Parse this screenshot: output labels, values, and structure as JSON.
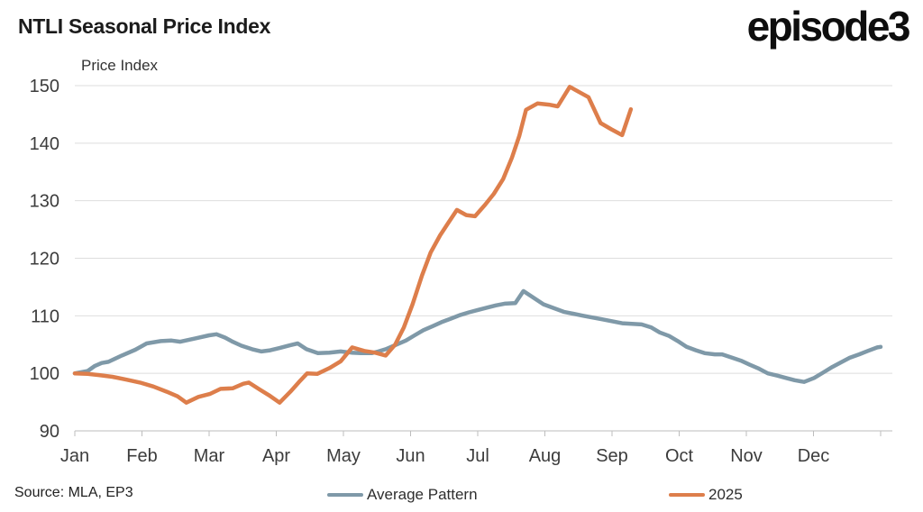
{
  "header": {
    "title": "NTLI Seasonal Price Index",
    "logo_text": "episode3"
  },
  "footer": {
    "source": "Source: MLA, EP3"
  },
  "chart_data": {
    "type": "line",
    "title": "NTLI Seasonal Price Index",
    "ylabel": "Price Index",
    "xlabel": "",
    "grid": true,
    "legend_position": "bottom",
    "ylim": [
      90,
      150
    ],
    "y_ticks": [
      90,
      100,
      110,
      120,
      130,
      140,
      150
    ],
    "x_unit": "month_index_0_is_january",
    "x_tick_labels": [
      "Jan",
      "Feb",
      "Mar",
      "Apr",
      "May",
      "Jun",
      "Jul",
      "Aug",
      "Sep",
      "Oct",
      "Nov",
      "Dec"
    ],
    "colors": {
      "average_pattern": "#7f99a8",
      "year_2025": "#dd7e4b"
    },
    "series": [
      {
        "name": "Average Pattern",
        "color": "#7f99a8",
        "points": [
          [
            0.0,
            100.0
          ],
          [
            0.19,
            100.4
          ],
          [
            0.3,
            101.3
          ],
          [
            0.4,
            101.8
          ],
          [
            0.5,
            102.0
          ],
          [
            0.7,
            103.1
          ],
          [
            0.9,
            104.1
          ],
          [
            1.07,
            105.2
          ],
          [
            1.28,
            105.6
          ],
          [
            1.44,
            105.7
          ],
          [
            1.57,
            105.5
          ],
          [
            1.81,
            106.1
          ],
          [
            2.0,
            106.6
          ],
          [
            2.11,
            106.8
          ],
          [
            2.24,
            106.2
          ],
          [
            2.35,
            105.5
          ],
          [
            2.48,
            104.8
          ],
          [
            2.64,
            104.2
          ],
          [
            2.78,
            103.8
          ],
          [
            2.91,
            104.0
          ],
          [
            3.05,
            104.4
          ],
          [
            3.21,
            104.9
          ],
          [
            3.32,
            105.2
          ],
          [
            3.45,
            104.2
          ],
          [
            3.62,
            103.5
          ],
          [
            3.79,
            103.6
          ],
          [
            3.96,
            103.8
          ],
          [
            4.12,
            103.6
          ],
          [
            4.26,
            103.5
          ],
          [
            4.42,
            103.5
          ],
          [
            4.52,
            103.8
          ],
          [
            4.63,
            104.2
          ],
          [
            4.77,
            104.9
          ],
          [
            4.93,
            105.7
          ],
          [
            5.06,
            106.6
          ],
          [
            5.19,
            107.5
          ],
          [
            5.33,
            108.2
          ],
          [
            5.46,
            108.9
          ],
          [
            5.6,
            109.5
          ],
          [
            5.73,
            110.1
          ],
          [
            5.87,
            110.6
          ],
          [
            6.0,
            111.0
          ],
          [
            6.13,
            111.4
          ],
          [
            6.27,
            111.8
          ],
          [
            6.4,
            112.1
          ],
          [
            6.56,
            112.2
          ],
          [
            6.68,
            114.3
          ],
          [
            6.98,
            112.0
          ],
          [
            7.28,
            110.7
          ],
          [
            7.57,
            110.0
          ],
          [
            7.85,
            109.4
          ],
          [
            8.15,
            108.7
          ],
          [
            8.44,
            108.5
          ],
          [
            8.58,
            108.0
          ],
          [
            8.71,
            107.1
          ],
          [
            8.85,
            106.5
          ],
          [
            8.98,
            105.6
          ],
          [
            9.11,
            104.6
          ],
          [
            9.25,
            104.0
          ],
          [
            9.38,
            103.5
          ],
          [
            9.53,
            103.3
          ],
          [
            9.64,
            103.3
          ],
          [
            9.79,
            102.7
          ],
          [
            9.92,
            102.2
          ],
          [
            10.05,
            101.5
          ],
          [
            10.19,
            100.8
          ],
          [
            10.32,
            100.0
          ],
          [
            10.46,
            99.6
          ],
          [
            10.59,
            99.2
          ],
          [
            10.72,
            98.8
          ],
          [
            10.86,
            98.5
          ],
          [
            11.01,
            99.2
          ],
          [
            11.14,
            100.1
          ],
          [
            11.28,
            101.1
          ],
          [
            11.41,
            101.9
          ],
          [
            11.54,
            102.7
          ],
          [
            11.68,
            103.3
          ],
          [
            11.81,
            103.9
          ],
          [
            11.95,
            104.5
          ],
          [
            12.0,
            104.6
          ]
        ]
      },
      {
        "name": "2025",
        "color": "#dd7e4b",
        "points": [
          [
            0.0,
            100.0
          ],
          [
            0.19,
            99.9
          ],
          [
            0.36,
            99.7
          ],
          [
            0.56,
            99.4
          ],
          [
            0.77,
            98.9
          ],
          [
            0.97,
            98.4
          ],
          [
            1.17,
            97.7
          ],
          [
            1.37,
            96.8
          ],
          [
            1.53,
            96.0
          ],
          [
            1.66,
            94.9
          ],
          [
            1.84,
            95.9
          ],
          [
            2.01,
            96.4
          ],
          [
            2.17,
            97.3
          ],
          [
            2.35,
            97.4
          ],
          [
            2.51,
            98.2
          ],
          [
            2.59,
            98.4
          ],
          [
            2.75,
            97.2
          ],
          [
            2.89,
            96.2
          ],
          [
            3.05,
            94.9
          ],
          [
            3.21,
            96.8
          ],
          [
            3.34,
            98.5
          ],
          [
            3.46,
            100.0
          ],
          [
            3.61,
            99.9
          ],
          [
            3.79,
            100.9
          ],
          [
            3.96,
            102.1
          ],
          [
            4.13,
            104.5
          ],
          [
            4.31,
            103.9
          ],
          [
            4.47,
            103.6
          ],
          [
            4.63,
            103.1
          ],
          [
            4.77,
            105.0
          ],
          [
            4.9,
            108.0
          ],
          [
            5.03,
            112.0
          ],
          [
            5.17,
            117.0
          ],
          [
            5.3,
            121.0
          ],
          [
            5.44,
            124.0
          ],
          [
            5.57,
            126.3
          ],
          [
            5.69,
            128.4
          ],
          [
            5.83,
            127.5
          ],
          [
            5.96,
            127.3
          ],
          [
            6.11,
            129.3
          ],
          [
            6.24,
            131.2
          ],
          [
            6.38,
            133.8
          ],
          [
            6.51,
            137.5
          ],
          [
            6.62,
            141.3
          ],
          [
            6.72,
            145.8
          ],
          [
            6.89,
            146.9
          ],
          [
            7.06,
            146.7
          ],
          [
            7.19,
            146.4
          ],
          [
            7.37,
            149.8
          ],
          [
            7.54,
            148.7
          ],
          [
            7.65,
            148.0
          ],
          [
            7.83,
            143.5
          ],
          [
            7.99,
            142.4
          ],
          [
            8.15,
            141.4
          ],
          [
            8.28,
            145.9
          ]
        ]
      }
    ]
  },
  "layout_text": {
    "price_index_label": "Price Index"
  }
}
